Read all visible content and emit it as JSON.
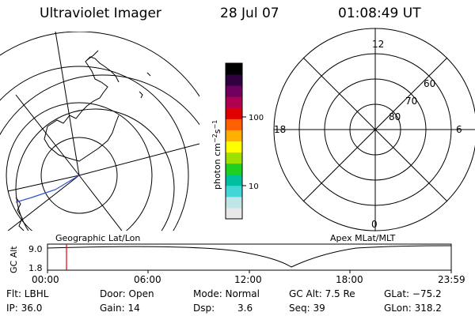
{
  "header": {
    "instrument": "Ultraviolet Imager",
    "date": "28 Jul 07",
    "time": "01:08:49 UT"
  },
  "colorbar": {
    "unit_label": "photon cm",
    "unit_exp1": "−2",
    "unit_mid": "s",
    "unit_exp2": "−1",
    "tick_100": "100",
    "tick_10": "10",
    "colors": [
      "#e8e8e8",
      "#bfe6e6",
      "#44d6d6",
      "#00c0a0",
      "#20d020",
      "#a0e000",
      "#ffff00",
      "#ffb000",
      "#ff6000",
      "#e00000",
      "#b00050",
      "#700060",
      "#300040",
      "#000000"
    ]
  },
  "polar_plot": {
    "title": "Apex MLat/MLT",
    "mlt_labels": {
      "top": "12",
      "left": "18",
      "right": "6",
      "bottom": "0"
    },
    "lat_labels": [
      "60",
      "70",
      "80"
    ]
  },
  "map": {
    "title": "Geographic Lat/Lon"
  },
  "gc_alt_plot": {
    "ylabel": "GC Alt",
    "y_ticks": [
      "9.0",
      "1.8"
    ],
    "x_ticks": [
      "00:00",
      "06:00",
      "12:00",
      "18:00",
      "23:59"
    ],
    "marker_color": "#e00000"
  },
  "info": {
    "filter": "Flt: LBHL",
    "ip": "IP: 36.0",
    "door": "Door: Open",
    "gain": "Gain: 14",
    "mode": "Mode: Normal",
    "dsp_label": "Dsp:",
    "dsp_value": "3.6",
    "gc_alt": "GC Alt: 7.5 Re",
    "seq": "Seq: 39",
    "glat": "GLat: −75.2",
    "glon": "GLon: 318.2"
  }
}
